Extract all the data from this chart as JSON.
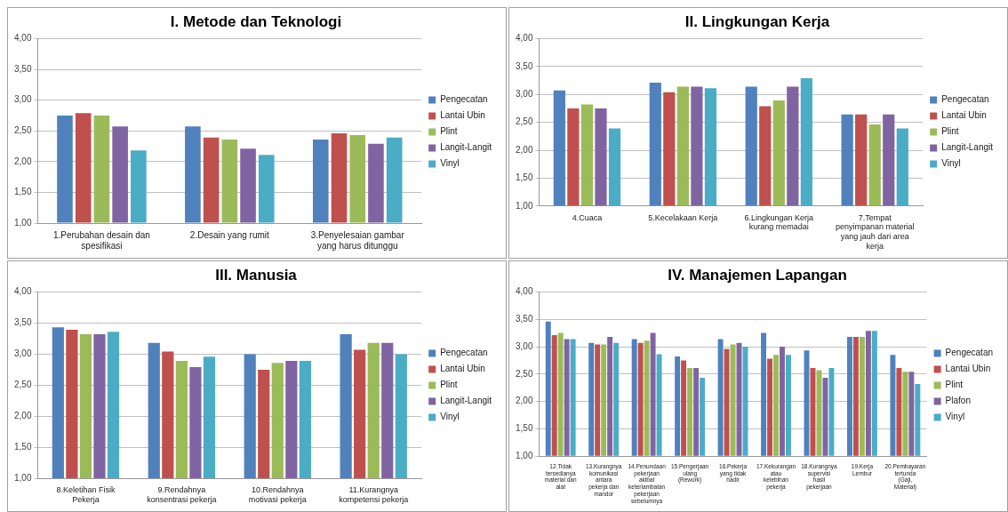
{
  "chart_data": [
    {
      "type": "bar",
      "title": "I. Metode dan Teknologi",
      "categories": [
        "1.Perubahan desain dan spesifikasi",
        "2.Desain yang rumit",
        "3.Penyelesaian gambar yang harus ditunggu"
      ],
      "series": [
        {
          "name": "Pengecatan",
          "color": "#4f81bd",
          "values": [
            2.75,
            2.57,
            2.36
          ]
        },
        {
          "name": "Lantai Ubin",
          "color": "#c0504d",
          "values": [
            2.79,
            2.39,
            2.46
          ]
        },
        {
          "name": "Plint",
          "color": "#9bbb59",
          "values": [
            2.75,
            2.36,
            2.43
          ]
        },
        {
          "name": "Langit-Langit",
          "color": "#8064a2",
          "values": [
            2.57,
            2.21,
            2.29
          ]
        },
        {
          "name": "Vinyl",
          "color": "#4bacc6",
          "values": [
            2.18,
            2.11,
            2.39
          ]
        }
      ],
      "ylim": [
        1,
        4
      ],
      "yticks": [
        {
          "value": 1,
          "label": "1,00"
        },
        {
          "value": 1.5,
          "label": "1,50"
        },
        {
          "value": 2,
          "label": "2,00"
        },
        {
          "value": 2.5,
          "label": "2,50"
        },
        {
          "value": 3,
          "label": "3,00"
        },
        {
          "value": 3.5,
          "label": "3,50"
        },
        {
          "value": 4,
          "label": "4,00"
        }
      ],
      "grid": "y",
      "legend": "right"
    },
    {
      "type": "bar",
      "title": "II. Lingkungan Kerja",
      "categories": [
        "4.Cuaca",
        "5.Kecelakaan Kerja",
        "6.Lingkungan Kerja kurang memadai",
        "7.Tempat penyimpanan material yang jauh dari area kerja"
      ],
      "series": [
        {
          "name": "Pengecatan",
          "color": "#4f81bd",
          "values": [
            3.07,
            3.21,
            3.14,
            2.64
          ]
        },
        {
          "name": "Lantai Ubin",
          "color": "#c0504d",
          "values": [
            2.75,
            3.04,
            2.79,
            2.64
          ]
        },
        {
          "name": "Plint",
          "color": "#9bbb59",
          "values": [
            2.82,
            3.14,
            2.89,
            2.46
          ]
        },
        {
          "name": "Langit-Langit",
          "color": "#8064a2",
          "values": [
            2.75,
            3.14,
            3.14,
            2.64
          ]
        },
        {
          "name": "Vinyl",
          "color": "#4bacc6",
          "values": [
            2.39,
            3.11,
            3.29,
            2.39
          ]
        }
      ],
      "ylim": [
        1,
        4
      ],
      "yticks": [
        {
          "value": 1,
          "label": "1,00"
        },
        {
          "value": 1.5,
          "label": "1,50"
        },
        {
          "value": 2,
          "label": "2,00"
        },
        {
          "value": 2.5,
          "label": "2,50"
        },
        {
          "value": 3,
          "label": "3,00"
        },
        {
          "value": 3.5,
          "label": "3,50"
        },
        {
          "value": 4,
          "label": "4,00"
        }
      ],
      "grid": "y",
      "legend": "right"
    },
    {
      "type": "bar",
      "title": "III. Manusia",
      "categories": [
        "8.Keletihan Fisik Pekerja",
        "9.Rendahnya konsentrasi pekerja",
        "10.Rendahnya motivasi pekerja",
        "11.Kurangnya kompetensi pekerja"
      ],
      "series": [
        {
          "name": "Pengecatan",
          "color": "#4f81bd",
          "values": [
            3.43,
            3.18,
            3.0,
            3.32
          ]
        },
        {
          "name": "Lantai Ubin",
          "color": "#c0504d",
          "values": [
            3.39,
            3.04,
            2.75,
            3.07
          ]
        },
        {
          "name": "Plint",
          "color": "#9bbb59",
          "values": [
            3.32,
            2.89,
            2.86,
            3.18
          ]
        },
        {
          "name": "Langit-Langit",
          "color": "#8064a2",
          "values": [
            3.32,
            2.79,
            2.89,
            3.18
          ]
        },
        {
          "name": "Vinyl",
          "color": "#4bacc6",
          "values": [
            3.36,
            2.96,
            2.89,
            3.0
          ]
        }
      ],
      "ylim": [
        1,
        4
      ],
      "yticks": [
        {
          "value": 1,
          "label": "1,00"
        },
        {
          "value": 1.5,
          "label": "1,50"
        },
        {
          "value": 2,
          "label": "2,00"
        },
        {
          "value": 2.5,
          "label": "2,50"
        },
        {
          "value": 3,
          "label": "3,00"
        },
        {
          "value": 3.5,
          "label": "3,50"
        },
        {
          "value": 4,
          "label": "4,00"
        }
      ],
      "grid": "y",
      "legend": "right"
    },
    {
      "type": "bar",
      "title": "IV. Manajemen Lapangan",
      "categories": [
        "12.Tidak tersedianya material dan alat",
        "13.Kurangnya komunikasi antara pekerja dan mandor",
        "14.Penundaan pekerjaan akibat keterlambatan pekerjaan sebelumnya",
        "15.Pengerjaan ulang (Rework)",
        "16.Pekerja yang tidak hadir",
        "17.Kekurangan atau kelebihan pekerja",
        "18.Kurangnya supervisi hasil pekerjaan",
        "19.Kerja Lembur",
        "20.Pembayaran tertunda (Gaji, Material)"
      ],
      "series": [
        {
          "name": "Pengecatan",
          "color": "#4f81bd",
          "values": [
            3.46,
            3.07,
            3.14,
            2.82,
            3.14,
            3.25,
            2.93,
            3.18,
            2.85
          ]
        },
        {
          "name": "Lantai Ubin",
          "color": "#c0504d",
          "values": [
            3.21,
            3.04,
            3.07,
            2.75,
            2.96,
            2.78,
            2.61,
            3.18,
            2.61
          ]
        },
        {
          "name": "Plint",
          "color": "#9bbb59",
          "values": [
            3.25,
            3.04,
            3.11,
            2.61,
            3.04,
            2.85,
            2.57,
            3.18,
            2.54
          ]
        },
        {
          "name": "Plafon",
          "color": "#8064a2",
          "values": [
            3.14,
            3.18,
            3.25,
            2.61,
            3.07,
            3.0,
            2.43,
            3.29,
            2.54
          ]
        },
        {
          "name": "Vinyl",
          "color": "#4bacc6",
          "values": [
            3.14,
            3.07,
            2.86,
            2.43,
            3.0,
            2.85,
            2.61,
            3.29,
            2.32
          ]
        }
      ],
      "ylim": [
        1,
        4
      ],
      "yticks": [
        {
          "value": 1,
          "label": "1,00"
        },
        {
          "value": 1.5,
          "label": "1,50"
        },
        {
          "value": 2,
          "label": "2,00"
        },
        {
          "value": 2.5,
          "label": "2,50"
        },
        {
          "value": 3,
          "label": "3,00"
        },
        {
          "value": 3.5,
          "label": "3,50"
        },
        {
          "value": 4,
          "label": "4,00"
        }
      ],
      "grid": "y",
      "legend": "right"
    }
  ]
}
